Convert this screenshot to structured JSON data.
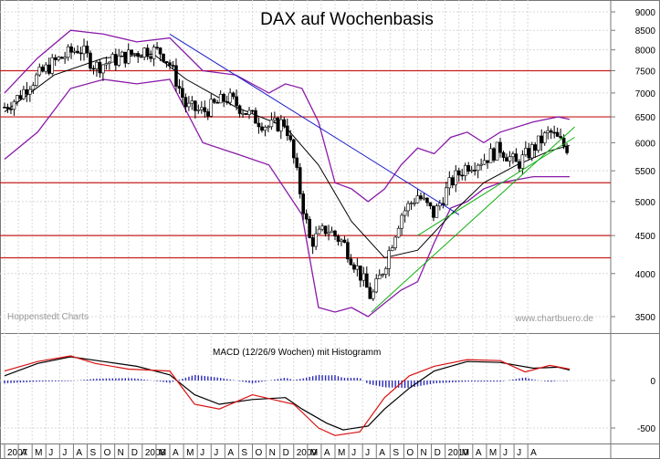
{
  "chart_data": [
    {
      "type": "candlestick",
      "title": "DAX auf Wochenbasis",
      "credit_left": "Hoppenstedt Charts",
      "credit_right": "www.chartbuero.de",
      "y_scale": "log",
      "ylim": [
        3350,
        9100
      ],
      "y_ticks": [
        3500,
        4000,
        4500,
        5000,
        5500,
        6000,
        6500,
        7000,
        7500,
        8000,
        8500,
        9000
      ],
      "x_tick_labels": [
        "2007",
        "A",
        "M",
        "J",
        "J",
        "A",
        "S",
        "O",
        "N",
        "D",
        "2008",
        "M",
        "A",
        "M",
        "J",
        "J",
        "A",
        "S",
        "O",
        "N",
        "D",
        "2009",
        "M",
        "A",
        "M",
        "J",
        "J",
        "A",
        "S",
        "O",
        "N",
        "D",
        "2010",
        "M",
        "A",
        "M",
        "J",
        "J",
        "A"
      ],
      "horizontal_levels": [
        7500,
        6500,
        5300,
        4500,
        4200
      ],
      "close_path": [
        [
          2007.0,
          6700
        ],
        [
          2007.08,
          6900
        ],
        [
          2007.15,
          7200
        ],
        [
          2007.3,
          7700
        ],
        [
          2007.45,
          8050
        ],
        [
          2007.55,
          7600
        ],
        [
          2007.7,
          7800
        ],
        [
          2007.85,
          8000
        ],
        [
          2007.95,
          7950
        ],
        [
          2008.0,
          7650
        ],
        [
          2008.1,
          6700
        ],
        [
          2008.2,
          6600
        ],
        [
          2008.35,
          6900
        ],
        [
          2008.5,
          6500
        ],
        [
          2008.6,
          6300
        ],
        [
          2008.7,
          6400
        ],
        [
          2008.8,
          5000
        ],
        [
          2008.85,
          4400
        ],
        [
          2008.95,
          4600
        ],
        [
          2009.05,
          4400
        ],
        [
          2009.15,
          4000
        ],
        [
          2009.22,
          3700
        ],
        [
          2009.3,
          4100
        ],
        [
          2009.4,
          4800
        ],
        [
          2009.5,
          5100
        ],
        [
          2009.6,
          4800
        ],
        [
          2009.7,
          5300
        ],
        [
          2009.8,
          5600
        ],
        [
          2009.9,
          5700
        ],
        [
          2010.0,
          5900
        ],
        [
          2010.1,
          5600
        ],
        [
          2010.2,
          5900
        ],
        [
          2010.3,
          6200
        ],
        [
          2010.4,
          5900
        ],
        [
          2010.42,
          6000
        ]
      ],
      "bollinger_upper": [
        [
          2007.0,
          7000
        ],
        [
          2007.2,
          7800
        ],
        [
          2007.4,
          8500
        ],
        [
          2007.6,
          8400
        ],
        [
          2007.8,
          8200
        ],
        [
          2008.0,
          8300
        ],
        [
          2008.2,
          7500
        ],
        [
          2008.4,
          7400
        ],
        [
          2008.6,
          7000
        ],
        [
          2008.7,
          7200
        ],
        [
          2008.8,
          7100
        ],
        [
          2008.9,
          6400
        ],
        [
          2009.0,
          5300
        ],
        [
          2009.1,
          5200
        ],
        [
          2009.2,
          5000
        ],
        [
          2009.3,
          5200
        ],
        [
          2009.4,
          5600
        ],
        [
          2009.5,
          5900
        ],
        [
          2009.6,
          5800
        ],
        [
          2009.7,
          6100
        ],
        [
          2009.8,
          6200
        ],
        [
          2009.9,
          6000
        ],
        [
          2010.0,
          6200
        ],
        [
          2010.2,
          6400
        ],
        [
          2010.35,
          6500
        ],
        [
          2010.42,
          6450
        ]
      ],
      "bollinger_lower": [
        [
          2007.0,
          5700
        ],
        [
          2007.2,
          6200
        ],
        [
          2007.4,
          7100
        ],
        [
          2007.6,
          7300
        ],
        [
          2007.8,
          7200
        ],
        [
          2008.0,
          7300
        ],
        [
          2008.2,
          6000
        ],
        [
          2008.4,
          5800
        ],
        [
          2008.6,
          5600
        ],
        [
          2008.8,
          4800
        ],
        [
          2008.9,
          3600
        ],
        [
          2009.0,
          3550
        ],
        [
          2009.1,
          3600
        ],
        [
          2009.2,
          3500
        ],
        [
          2009.3,
          3650
        ],
        [
          2009.4,
          3800
        ],
        [
          2009.5,
          3900
        ],
        [
          2009.6,
          4400
        ],
        [
          2009.7,
          4900
        ],
        [
          2009.8,
          5000
        ],
        [
          2009.9,
          5200
        ],
        [
          2010.0,
          5300
        ],
        [
          2010.2,
          5400
        ],
        [
          2010.35,
          5400
        ],
        [
          2010.42,
          5400
        ]
      ],
      "moving_average": [
        [
          2007.0,
          6600
        ],
        [
          2007.3,
          7400
        ],
        [
          2007.6,
          7800
        ],
        [
          2007.9,
          7900
        ],
        [
          2008.1,
          7300
        ],
        [
          2008.4,
          6700
        ],
        [
          2008.7,
          6300
        ],
        [
          2008.9,
          5600
        ],
        [
          2009.1,
          4700
        ],
        [
          2009.3,
          4200
        ],
        [
          2009.5,
          4300
        ],
        [
          2009.7,
          4800
        ],
        [
          2009.9,
          5300
        ],
        [
          2010.1,
          5600
        ],
        [
          2010.3,
          5850
        ],
        [
          2010.42,
          5950
        ]
      ],
      "trendlines": [
        {
          "color": "#1e1ec8",
          "points": [
            [
              2008.0,
              8400
            ],
            [
              2009.75,
              4800
            ]
          ]
        },
        {
          "color": "#10b010",
          "points": [
            [
              2009.22,
              3550
            ],
            [
              2010.45,
              6300
            ]
          ]
        },
        {
          "color": "#10b010",
          "points": [
            [
              2009.5,
              4500
            ],
            [
              2010.45,
              6100
            ]
          ]
        }
      ]
    },
    {
      "type": "line",
      "title": "MACD (12/26/9 Wochen) mit Histogramm",
      "ylim": [
        -600,
        350
      ],
      "y_ticks": [
        -500,
        0
      ],
      "series": [
        {
          "name": "MACD",
          "color": "#000000",
          "points": [
            [
              2007.0,
              50
            ],
            [
              2007.2,
              180
            ],
            [
              2007.4,
              250
            ],
            [
              2007.6,
              200
            ],
            [
              2007.8,
              150
            ],
            [
              2008.0,
              60
            ],
            [
              2008.15,
              -150
            ],
            [
              2008.3,
              -250
            ],
            [
              2008.5,
              -200
            ],
            [
              2008.7,
              -180
            ],
            [
              2008.8,
              -300
            ],
            [
              2008.95,
              -450
            ],
            [
              2009.05,
              -520
            ],
            [
              2009.2,
              -480
            ],
            [
              2009.3,
              -300
            ],
            [
              2009.45,
              -80
            ],
            [
              2009.6,
              100
            ],
            [
              2009.8,
              200
            ],
            [
              2010.0,
              190
            ],
            [
              2010.2,
              130
            ],
            [
              2010.35,
              140
            ],
            [
              2010.42,
              110
            ]
          ]
        },
        {
          "name": "Signal",
          "color": "#d81010",
          "points": [
            [
              2007.0,
              100
            ],
            [
              2007.2,
              200
            ],
            [
              2007.4,
              260
            ],
            [
              2007.55,
              180
            ],
            [
              2007.75,
              120
            ],
            [
              2008.0,
              100
            ],
            [
              2008.15,
              -250
            ],
            [
              2008.3,
              -300
            ],
            [
              2008.5,
              -150
            ],
            [
              2008.75,
              -250
            ],
            [
              2008.9,
              -500
            ],
            [
              2009.0,
              -580
            ],
            [
              2009.15,
              -540
            ],
            [
              2009.3,
              -180
            ],
            [
              2009.45,
              50
            ],
            [
              2009.6,
              150
            ],
            [
              2009.8,
              220
            ],
            [
              2010.0,
              210
            ],
            [
              2010.15,
              90
            ],
            [
              2010.3,
              160
            ],
            [
              2010.42,
              120
            ]
          ]
        }
      ]
    }
  ]
}
